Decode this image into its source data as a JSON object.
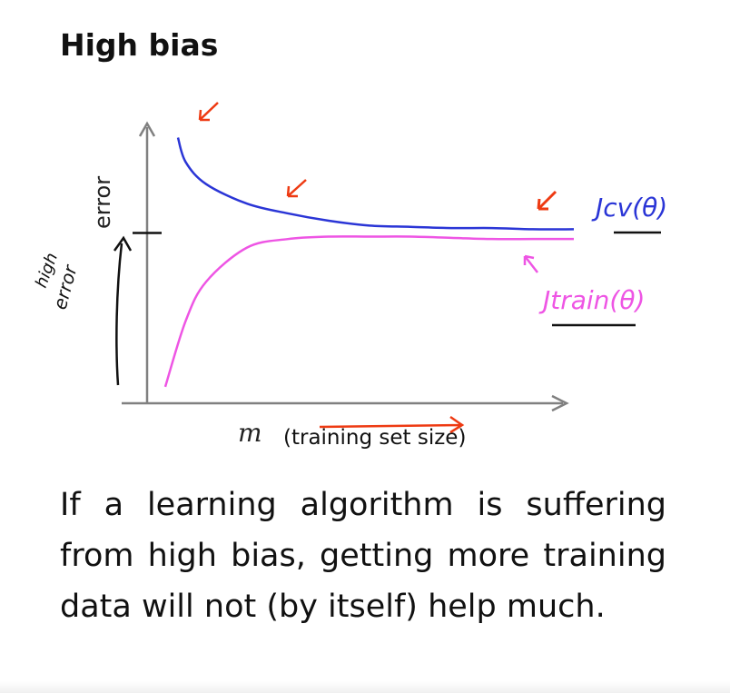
{
  "slide": {
    "title": "High bias",
    "body": "If a learning algorithm is suffering from high bias, getting more training data will not (by itself) help much."
  },
  "chart_data": {
    "type": "line",
    "ylabel": "error",
    "xlabel_symbol": "m",
    "xlabel": "(training set size)",
    "annotations": {
      "y_side_note": [
        "high",
        "error"
      ],
      "jcv_label": "Jcv(θ)",
      "jtrain_label": "Jtrain(θ)"
    },
    "xlim": [
      0,
      100
    ],
    "ylim": [
      0,
      1
    ],
    "plateau_level": 0.66,
    "series": [
      {
        "name": "Jcv(θ)",
        "x": [
          0,
          5,
          10,
          20,
          30,
          40,
          50,
          60,
          70,
          80,
          90,
          100
        ],
        "values": [
          1.05,
          0.95,
          0.86,
          0.78,
          0.74,
          0.71,
          0.69,
          0.685,
          0.68,
          0.68,
          0.675,
          0.675
        ]
      },
      {
        "name": "Jtrain(θ)",
        "x": [
          0,
          5,
          10,
          20,
          30,
          40,
          50,
          60,
          70,
          80,
          90,
          100
        ],
        "values": [
          0.03,
          0.3,
          0.46,
          0.6,
          0.635,
          0.645,
          0.645,
          0.645,
          0.64,
          0.635,
          0.635,
          0.635
        ]
      }
    ],
    "colors": {
      "axes": "#808080",
      "jcv": "#2a35d6",
      "jtrain": "#ee55e4",
      "ink": "#111111",
      "highlight": "#ee3a12"
    }
  }
}
